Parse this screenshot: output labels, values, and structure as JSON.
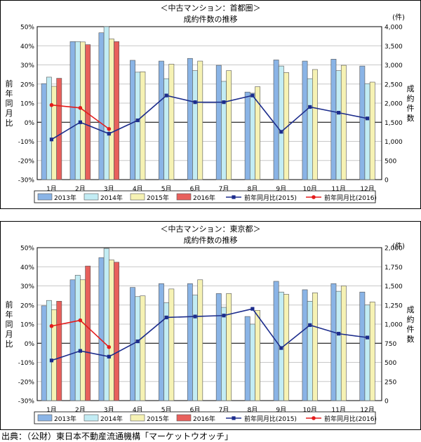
{
  "source": "出典：（公財）東日本不動産流通機構「マーケットウオッチ」",
  "colors": {
    "y2013": "#8ab4e6",
    "y2014": "#c2ecf4",
    "y2015": "#f6f2b4",
    "y2016": "#e8605c",
    "line2015": "#1c2c8c",
    "line2016": "#e41c1c"
  },
  "chart_data": [
    {
      "type": "bar",
      "title": "＜中古マンション：首都圏＞",
      "subtitle": "成約件数の推移",
      "ylabel_left": "前年同月比",
      "ylabel_right": "成約件数",
      "right_unit": "(件)",
      "categories": [
        "1月",
        "2月",
        "3月",
        "4月",
        "5月",
        "6月",
        "7月",
        "8月",
        "9月",
        "10月",
        "11月",
        "12月"
      ],
      "ylim_left": [
        -30,
        50
      ],
      "ylim_right": [
        0,
        4000
      ],
      "left_ticks": [
        "50%",
        "40%",
        "30%",
        "20%",
        "10%",
        "0%",
        "-10%",
        "-20%",
        "-30%"
      ],
      "right_ticks": [
        "4,000",
        "3,500",
        "3,000",
        "2,500",
        "2,000",
        "1,500",
        "1,000",
        "500",
        "0"
      ],
      "series": [
        {
          "name": "2013年",
          "values": [
            2510,
            3610,
            3840,
            3120,
            3100,
            3170,
            2990,
            2290,
            3130,
            3100,
            3150,
            2970
          ]
        },
        {
          "name": "2014年",
          "values": [
            2680,
            3610,
            4000,
            2810,
            2640,
            2850,
            2570,
            2260,
            2970,
            2640,
            2850,
            2510
          ]
        },
        {
          "name": "2015年",
          "values": [
            2440,
            3600,
            3680,
            2820,
            3020,
            3100,
            2850,
            2430,
            2800,
            2880,
            2990,
            2550
          ]
        },
        {
          "name": "2016年",
          "values": [
            2650,
            3530,
            3610,
            null,
            null,
            null,
            null,
            null,
            null,
            null,
            null,
            null
          ]
        }
      ],
      "lines": [
        {
          "name": "前年同月比(2015)",
          "values": [
            -9,
            0,
            -6,
            1,
            14,
            10.5,
            10.5,
            14,
            -5,
            8,
            5,
            2
          ]
        },
        {
          "name": "前年同月比(2016)",
          "values": [
            9,
            7.5,
            -3.5,
            null,
            null,
            null,
            null,
            null,
            null,
            null,
            null,
            null
          ]
        }
      ]
    },
    {
      "type": "bar",
      "title": "＜中古マンション：東京都＞",
      "subtitle": "成約件数の推移",
      "ylabel_left": "前年同月比",
      "ylabel_right": "成約件数",
      "right_unit": "(件)",
      "categories": [
        "1月",
        "2月",
        "3月",
        "4月",
        "5月",
        "6月",
        "7月",
        "8月",
        "9月",
        "10月",
        "11月",
        "12月"
      ],
      "ylim_left": [
        -30,
        50
      ],
      "ylim_right": [
        0,
        2000
      ],
      "left_ticks": [
        "50%",
        "40%",
        "30%",
        "20%",
        "10%",
        "0%",
        "-10%",
        "-20%",
        "-30%"
      ],
      "right_ticks": [
        "2,000",
        "1,750",
        "1,500",
        "1,250",
        "1,000",
        "750",
        "500",
        "250",
        "0"
      ],
      "series": [
        {
          "name": "2013年",
          "values": [
            1240,
            1580,
            1870,
            1480,
            1530,
            1530,
            1400,
            1100,
            1560,
            1450,
            1530,
            1420
          ]
        },
        {
          "name": "2014年",
          "values": [
            1310,
            1640,
            1990,
            1360,
            1280,
            1380,
            1220,
            1000,
            1420,
            1300,
            1430,
            1250
          ]
        },
        {
          "name": "2015年",
          "values": [
            1190,
            1580,
            1840,
            1370,
            1460,
            1580,
            1400,
            1180,
            1390,
            1410,
            1500,
            1290
          ]
        },
        {
          "name": "2016年",
          "values": [
            1300,
            1760,
            1810,
            null,
            null,
            null,
            null,
            null,
            null,
            null,
            null,
            null
          ]
        }
      ],
      "lines": [
        {
          "name": "前年同月比(2015)",
          "values": [
            -9,
            -4,
            -7,
            1,
            13.5,
            14,
            14.5,
            18,
            -2.5,
            9.5,
            5,
            3
          ]
        },
        {
          "name": "前年同月比(2016)",
          "values": [
            9,
            12,
            -2,
            null,
            null,
            null,
            null,
            null,
            null,
            null,
            null,
            null
          ]
        }
      ]
    }
  ]
}
